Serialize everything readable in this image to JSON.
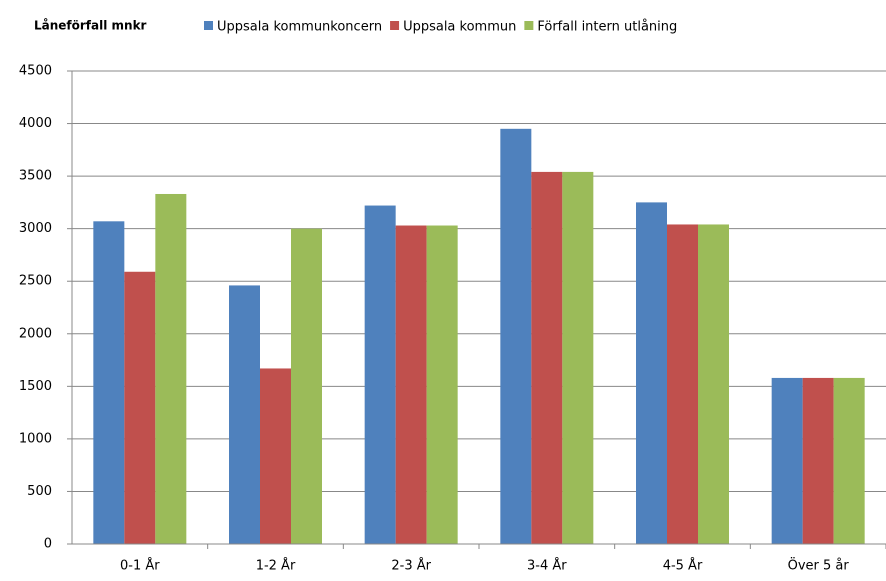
{
  "chart_data": {
    "type": "bar",
    "title": "Låneförfall mnkr",
    "categories": [
      "0-1 År",
      "1-2 År",
      "2-3 År",
      "3-4 År",
      "4-5 År",
      "Över 5 år"
    ],
    "series": [
      {
        "name": "Uppsala kommunkoncern",
        "color": "#4f81bd",
        "values": [
          3070,
          2460,
          3220,
          3950,
          3250,
          1580
        ]
      },
      {
        "name": "Uppsala kommun",
        "color": "#c0504d",
        "values": [
          2590,
          1670,
          3030,
          3540,
          3040,
          1580
        ]
      },
      {
        "name": "Förfall intern utlåning",
        "color": "#9bbb59",
        "values": [
          3330,
          3000,
          3030,
          3540,
          3040,
          1580
        ]
      }
    ],
    "ylim": [
      0,
      4500
    ],
    "yticks": [
      0,
      500,
      1000,
      1500,
      2000,
      2500,
      3000,
      3500,
      4000,
      4500
    ],
    "grid": true,
    "legend": "top"
  }
}
